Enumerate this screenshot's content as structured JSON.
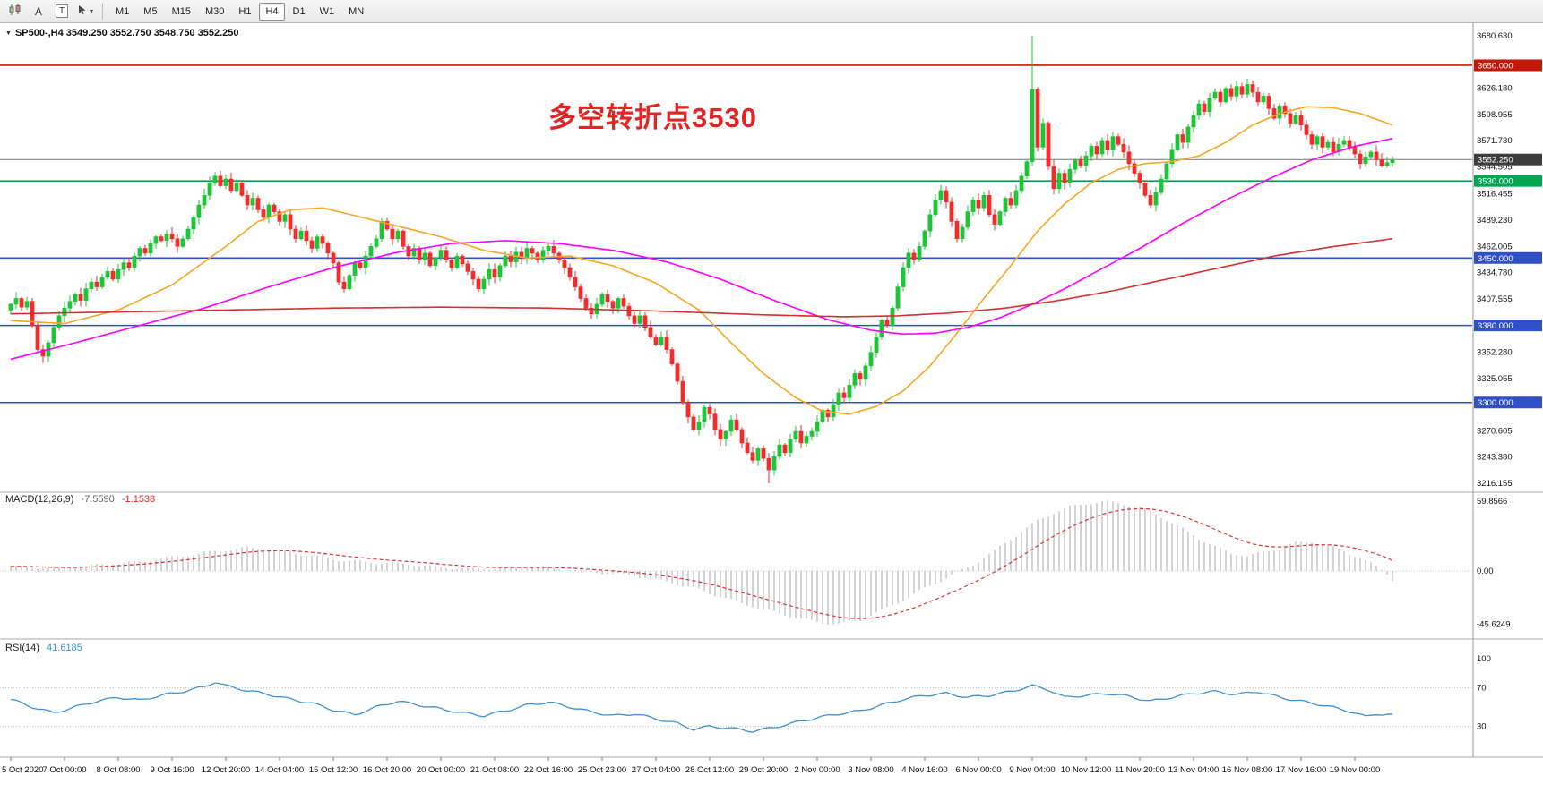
{
  "toolbar": {
    "tools": {
      "a_label": "A",
      "t_label": "T"
    },
    "icons": [
      "candlestick-chart-icon",
      "cursor-tool-icon",
      "chevron-down-icon"
    ],
    "timeframes": [
      "M1",
      "M5",
      "M15",
      "M30",
      "H1",
      "H4",
      "D1",
      "W1",
      "MN"
    ],
    "active_timeframe": "H4"
  },
  "annotation": {
    "text": "多空转折点3530",
    "color": "#e32424"
  },
  "chart_data": {
    "type": "candlestick",
    "symbol": "SP500-",
    "period": "H4",
    "title_text": "SP500-,H4 3549.250 3552.750 3548.750 3552.250",
    "open": "3549.250",
    "high": "3552.750",
    "low": "3548.750",
    "close": "3552.250",
    "current_price": 3552.25,
    "current_price_label": "3552.250",
    "price_axis": {
      "min": 3216.155,
      "max": 3680.63,
      "ticks": [
        "3680.630",
        "3626.180",
        "3598.955",
        "3571.730",
        "3544.505",
        "3516.455",
        "3489.230",
        "3462.005",
        "3434.780",
        "3407.555",
        "3352.280",
        "3325.055",
        "3270.605",
        "3243.380",
        "3216.155"
      ]
    },
    "levels": [
      {
        "price": 3650.0,
        "label": "3650.000",
        "color": "#c21807"
      },
      {
        "price": 3530.0,
        "label": "3530.000",
        "color": "#00a651"
      },
      {
        "price": 3450.0,
        "label": "3450.000",
        "color": "#3050c8"
      },
      {
        "price": 3380.0,
        "label": "3380.000",
        "color": "#3050c8"
      },
      {
        "price": 3300.0,
        "label": "3300.000",
        "color": "#3050c8"
      }
    ],
    "time_axis": [
      "5 Oct 2020",
      "7 Oct 00:00",
      "8 Oct 08:00",
      "9 Oct 16:00",
      "12 Oct 20:00",
      "14 Oct 04:00",
      "15 Oct 12:00",
      "16 Oct 20:00",
      "20 Oct 00:00",
      "21 Oct 08:00",
      "22 Oct 16:00",
      "25 Oct 23:00",
      "27 Oct 04:00",
      "28 Oct 12:00",
      "29 Oct 20:00",
      "2 Nov 00:00",
      "3 Nov 08:00",
      "4 Nov 16:00",
      "6 Nov 00:00",
      "9 Nov 04:00",
      "10 Nov 12:00",
      "11 Nov 20:00",
      "13 Nov 04:00",
      "16 Nov 08:00",
      "17 Nov 16:00",
      "19 Nov 00:00"
    ],
    "candles": {
      "first_open": 3396,
      "up_color": "#1fc437",
      "down_color": "#ef2d2d",
      "closes": [
        3402,
        3408,
        3399,
        3405,
        3380,
        3355,
        3348,
        3362,
        3378,
        3390,
        3398,
        3405,
        3412,
        3406,
        3418,
        3425,
        3420,
        3430,
        3436,
        3428,
        3438,
        3445,
        3440,
        3452,
        3460,
        3455,
        3465,
        3472,
        3468,
        3475,
        3470,
        3462,
        3470,
        3480,
        3492,
        3505,
        3515,
        3528,
        3535,
        3525,
        3532,
        3520,
        3528,
        3515,
        3505,
        3512,
        3500,
        3492,
        3505,
        3498,
        3488,
        3495,
        3480,
        3470,
        3478,
        3468,
        3460,
        3472,
        3465,
        3455,
        3445,
        3425,
        3418,
        3432,
        3445,
        3440,
        3452,
        3462,
        3470,
        3488,
        3480,
        3470,
        3478,
        3462,
        3452,
        3460,
        3448,
        3455,
        3442,
        3450,
        3458,
        3448,
        3440,
        3452,
        3444,
        3436,
        3428,
        3418,
        3428,
        3438,
        3430,
        3442,
        3452,
        3446,
        3456,
        3450,
        3460,
        3455,
        3448,
        3458,
        3462,
        3455,
        3448,
        3440,
        3430,
        3420,
        3408,
        3398,
        3392,
        3402,
        3412,
        3405,
        3398,
        3408,
        3400,
        3390,
        3382,
        3390,
        3378,
        3368,
        3360,
        3368,
        3355,
        3340,
        3322,
        3300,
        3285,
        3272,
        3280,
        3295,
        3288,
        3272,
        3262,
        3270,
        3282,
        3272,
        3258,
        3248,
        3240,
        3252,
        3242,
        3230,
        3244,
        3256,
        3248,
        3262,
        3270,
        3258,
        3265,
        3270,
        3280,
        3292,
        3285,
        3298,
        3310,
        3305,
        3318,
        3330,
        3324,
        3338,
        3352,
        3368,
        3385,
        3380,
        3398,
        3420,
        3440,
        3455,
        3448,
        3462,
        3478,
        3495,
        3510,
        3520,
        3508,
        3488,
        3470,
        3482,
        3498,
        3510,
        3502,
        3515,
        3495,
        3485,
        3498,
        3512,
        3505,
        3520,
        3535,
        3550,
        3625,
        3565,
        3590,
        3545,
        3522,
        3538,
        3528,
        3542,
        3552,
        3546,
        3556,
        3566,
        3558,
        3572,
        3562,
        3576,
        3568,
        3560,
        3548,
        3538,
        3528,
        3515,
        3505,
        3518,
        3532,
        3548,
        3562,
        3578,
        3570,
        3586,
        3598,
        3610,
        3602,
        3616,
        3622,
        3612,
        3626,
        3618,
        3628,
        3620,
        3630,
        3622,
        3612,
        3618,
        3605,
        3595,
        3608,
        3600,
        3590,
        3598,
        3588,
        3578,
        3568,
        3576,
        3565,
        3570,
        3560,
        3568,
        3572,
        3565,
        3558,
        3548,
        3555,
        3560,
        3552,
        3546,
        3549,
        3552.25
      ],
      "high_overrides": {
        "190": 3680.6
      },
      "low_overrides": {
        "6": 3341,
        "141": 3216.2
      }
    },
    "moving_averages": [
      {
        "name": "ma-fast",
        "color": "#f5a623",
        "points": [
          [
            0,
            3385
          ],
          [
            10,
            3382
          ],
          [
            20,
            3396
          ],
          [
            30,
            3422
          ],
          [
            40,
            3462
          ],
          [
            46,
            3488
          ],
          [
            52,
            3500
          ],
          [
            58,
            3502
          ],
          [
            64,
            3494
          ],
          [
            72,
            3483
          ],
          [
            80,
            3472
          ],
          [
            88,
            3458
          ],
          [
            96,
            3450
          ],
          [
            104,
            3452
          ],
          [
            112,
            3442
          ],
          [
            120,
            3424
          ],
          [
            128,
            3396
          ],
          [
            134,
            3362
          ],
          [
            140,
            3330
          ],
          [
            146,
            3305
          ],
          [
            151,
            3291
          ],
          [
            156,
            3288
          ],
          [
            161,
            3296
          ],
          [
            166,
            3312
          ],
          [
            171,
            3338
          ],
          [
            176,
            3372
          ],
          [
            181,
            3408
          ],
          [
            186,
            3442
          ],
          [
            191,
            3478
          ],
          [
            196,
            3506
          ],
          [
            201,
            3528
          ],
          [
            206,
            3542
          ],
          [
            211,
            3548
          ],
          [
            216,
            3550
          ],
          [
            221,
            3556
          ],
          [
            226,
            3570
          ],
          [
            231,
            3588
          ],
          [
            236,
            3600
          ],
          [
            241,
            3607
          ],
          [
            246,
            3606
          ],
          [
            251,
            3600
          ],
          [
            257,
            3588
          ]
        ]
      },
      {
        "name": "ma-mid",
        "color": "#ff00ff",
        "points": [
          [
            0,
            3345
          ],
          [
            12,
            3362
          ],
          [
            24,
            3380
          ],
          [
            36,
            3398
          ],
          [
            48,
            3420
          ],
          [
            60,
            3440
          ],
          [
            72,
            3456
          ],
          [
            82,
            3465
          ],
          [
            92,
            3468
          ],
          [
            102,
            3465
          ],
          [
            112,
            3458
          ],
          [
            122,
            3446
          ],
          [
            132,
            3428
          ],
          [
            142,
            3406
          ],
          [
            152,
            3386
          ],
          [
            160,
            3375
          ],
          [
            166,
            3371
          ],
          [
            172,
            3372
          ],
          [
            178,
            3378
          ],
          [
            184,
            3388
          ],
          [
            190,
            3402
          ],
          [
            196,
            3418
          ],
          [
            202,
            3436
          ],
          [
            210,
            3460
          ],
          [
            218,
            3486
          ],
          [
            226,
            3510
          ],
          [
            234,
            3532
          ],
          [
            242,
            3552
          ],
          [
            250,
            3566
          ],
          [
            257,
            3574
          ]
        ]
      },
      {
        "name": "ma-slow",
        "color": "#d33030",
        "points": [
          [
            0,
            3392
          ],
          [
            20,
            3394
          ],
          [
            40,
            3396
          ],
          [
            60,
            3398
          ],
          [
            80,
            3399
          ],
          [
            100,
            3398
          ],
          [
            120,
            3395
          ],
          [
            140,
            3391
          ],
          [
            155,
            3389
          ],
          [
            165,
            3390
          ],
          [
            175,
            3393
          ],
          [
            185,
            3398
          ],
          [
            195,
            3406
          ],
          [
            205,
            3416
          ],
          [
            215,
            3428
          ],
          [
            225,
            3440
          ],
          [
            235,
            3452
          ],
          [
            245,
            3461
          ],
          [
            257,
            3470
          ]
        ]
      }
    ],
    "macd": {
      "label": "MACD(12,26,9)",
      "main_value": "-7.5590",
      "signal_value": "-1.1538",
      "axis": [
        "59.8566",
        "0.00",
        "-45.6249"
      ],
      "axis_values": [
        59.8566,
        0,
        -45.6249
      ],
      "histogram_color": "#b8b8b8",
      "signal_color": "#e03030",
      "points": [
        [
          0,
          4
        ],
        [
          8,
          2
        ],
        [
          16,
          5
        ],
        [
          24,
          8
        ],
        [
          32,
          13
        ],
        [
          38,
          17
        ],
        [
          44,
          20
        ],
        [
          50,
          18
        ],
        [
          56,
          13
        ],
        [
          62,
          9
        ],
        [
          68,
          7
        ],
        [
          74,
          6
        ],
        [
          80,
          3
        ],
        [
          86,
          1.5
        ],
        [
          92,
          2.5
        ],
        [
          98,
          3.5
        ],
        [
          104,
          1
        ],
        [
          110,
          -1.5
        ],
        [
          116,
          -4
        ],
        [
          122,
          -9
        ],
        [
          128,
          -16
        ],
        [
          134,
          -25
        ],
        [
          140,
          -33
        ],
        [
          146,
          -40
        ],
        [
          150,
          -44
        ],
        [
          154,
          -45.6
        ],
        [
          158,
          -42
        ],
        [
          162,
          -34
        ],
        [
          166,
          -25
        ],
        [
          170,
          -15
        ],
        [
          174,
          -6
        ],
        [
          178,
          3
        ],
        [
          182,
          14
        ],
        [
          185,
          24
        ],
        [
          188,
          34
        ],
        [
          191,
          43
        ],
        [
          194,
          50
        ],
        [
          197,
          55
        ],
        [
          200,
          58
        ],
        [
          203,
          59.5
        ],
        [
          206,
          58.5
        ],
        [
          209,
          56
        ],
        [
          212,
          51
        ],
        [
          215,
          44
        ],
        [
          218,
          36
        ],
        [
          221,
          28
        ],
        [
          224,
          21
        ],
        [
          227,
          15
        ],
        [
          230,
          13
        ],
        [
          233,
          16
        ],
        [
          236,
          20
        ],
        [
          239,
          24
        ],
        [
          242,
          25
        ],
        [
          245,
          22
        ],
        [
          248,
          17
        ],
        [
          251,
          11
        ],
        [
          254,
          4
        ],
        [
          256,
          -2
        ],
        [
          257,
          -7.56
        ]
      ]
    },
    "rsi": {
      "label": "RSI(14)",
      "value": "41.6185",
      "color": "#3f8fd2",
      "axis": [
        "100",
        "70",
        "30"
      ],
      "axis_values": [
        100,
        70,
        30
      ],
      "levels": [
        70,
        30
      ],
      "points": [
        [
          0,
          58
        ],
        [
          4,
          50
        ],
        [
          8,
          44
        ],
        [
          12,
          50
        ],
        [
          16,
          56
        ],
        [
          20,
          60
        ],
        [
          24,
          57
        ],
        [
          28,
          62
        ],
        [
          32,
          66
        ],
        [
          36,
          71
        ],
        [
          38,
          76
        ],
        [
          40,
          72
        ],
        [
          44,
          67
        ],
        [
          48,
          63
        ],
        [
          52,
          58
        ],
        [
          56,
          54
        ],
        [
          60,
          47
        ],
        [
          64,
          42
        ],
        [
          68,
          50
        ],
        [
          72,
          56
        ],
        [
          76,
          52
        ],
        [
          80,
          48
        ],
        [
          84,
          44
        ],
        [
          88,
          41
        ],
        [
          92,
          46
        ],
        [
          96,
          52
        ],
        [
          100,
          55
        ],
        [
          104,
          50
        ],
        [
          108,
          45
        ],
        [
          112,
          41
        ],
        [
          116,
          43
        ],
        [
          120,
          38
        ],
        [
          124,
          33
        ],
        [
          127,
          27
        ],
        [
          130,
          30
        ],
        [
          134,
          28
        ],
        [
          138,
          25
        ],
        [
          142,
          29
        ],
        [
          146,
          34
        ],
        [
          150,
          39
        ],
        [
          154,
          43
        ],
        [
          158,
          46
        ],
        [
          162,
          52
        ],
        [
          166,
          58
        ],
        [
          170,
          62
        ],
        [
          174,
          64
        ],
        [
          178,
          60
        ],
        [
          182,
          62
        ],
        [
          186,
          66
        ],
        [
          190,
          72
        ],
        [
          193,
          68
        ],
        [
          196,
          60
        ],
        [
          200,
          62
        ],
        [
          204,
          64
        ],
        [
          208,
          61
        ],
        [
          212,
          56
        ],
        [
          216,
          60
        ],
        [
          220,
          64
        ],
        [
          224,
          66
        ],
        [
          228,
          63
        ],
        [
          232,
          66
        ],
        [
          236,
          60
        ],
        [
          240,
          56
        ],
        [
          244,
          52
        ],
        [
          248,
          47
        ],
        [
          250,
          44
        ],
        [
          252,
          40
        ],
        [
          254,
          43
        ],
        [
          257,
          41.6
        ]
      ]
    }
  }
}
